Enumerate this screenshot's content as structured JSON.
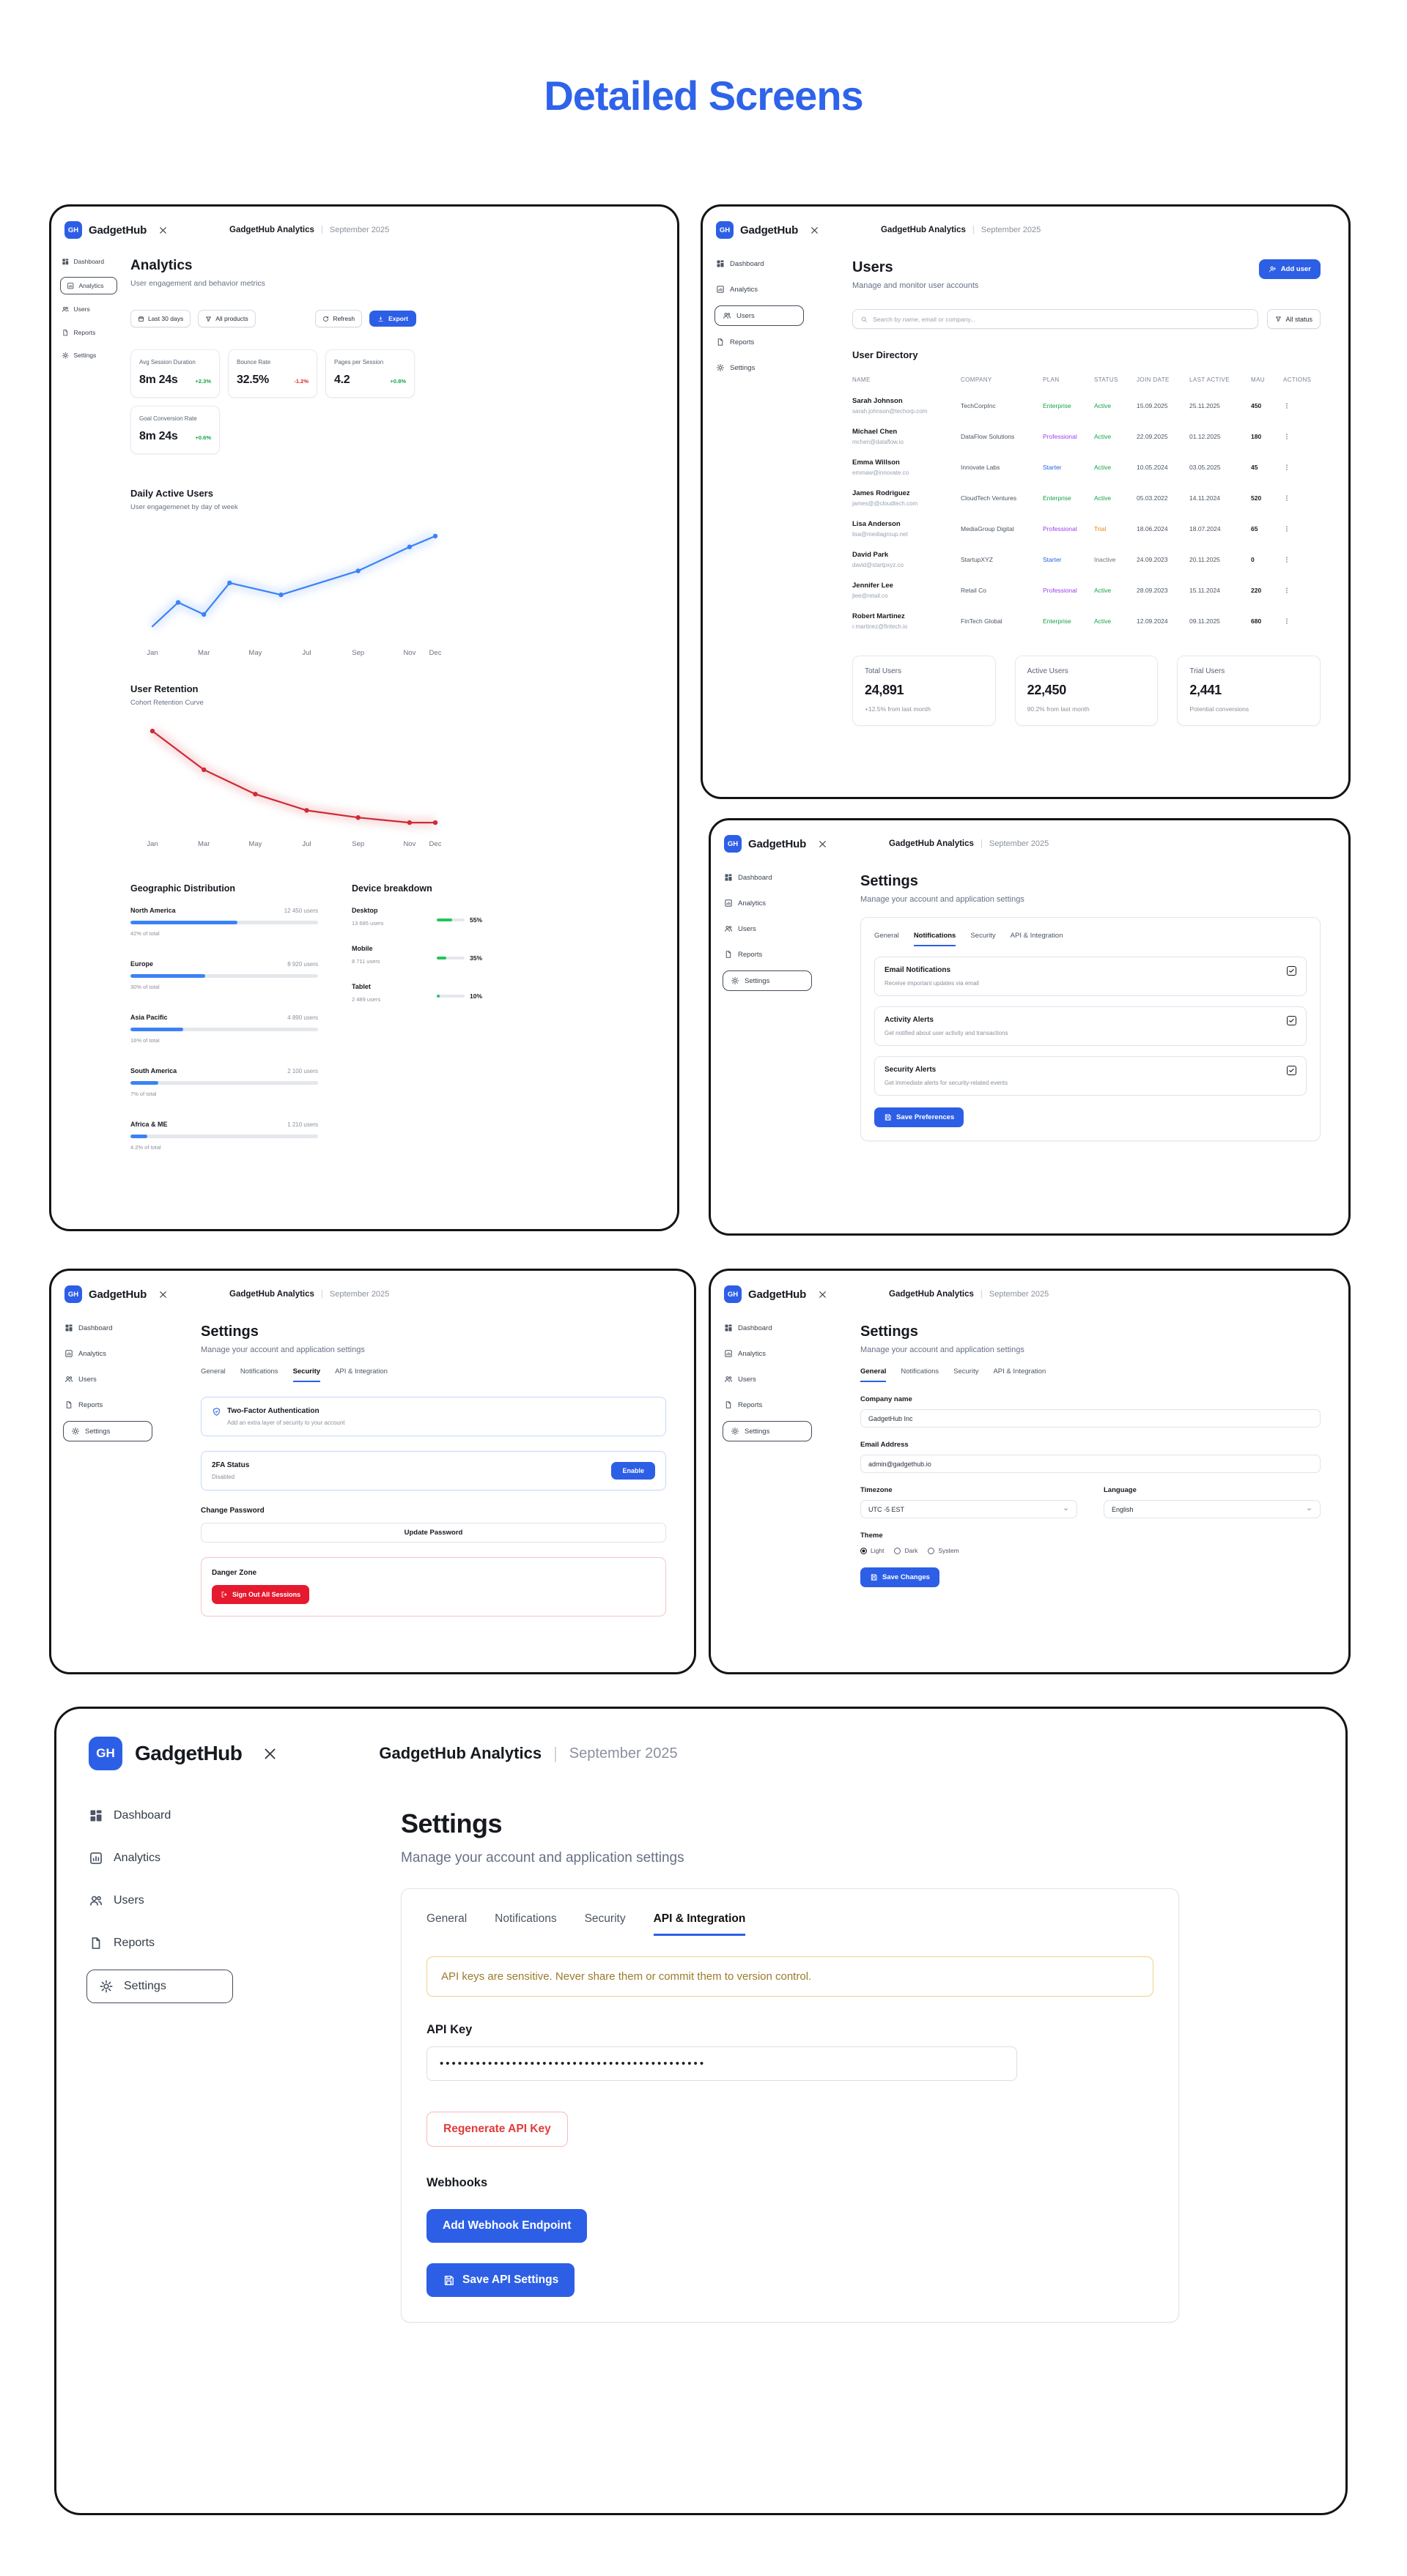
{
  "page": {
    "title": "Detailed Screens"
  },
  "colors": {
    "accent": "#2d5fe6",
    "green": "#16a34a",
    "red": "#e02424",
    "purple": "#9b3df2",
    "orange": "#e8820e",
    "chart_blue": "#3b82f6",
    "chart_red": "#cf2b34",
    "warning_text": "#9b7b2b",
    "danger": "#e6192e"
  },
  "chrome": {
    "logo": "GH",
    "app": "GadgetHub",
    "title": "GadgetHub Analytics",
    "separator": "|",
    "subtitle": "September 2025"
  },
  "sidebar": {
    "items": [
      {
        "label": "Dashboard",
        "icon": "grid"
      },
      {
        "label": "Analytics",
        "icon": "chart"
      },
      {
        "label": "Users",
        "icon": "users"
      },
      {
        "label": "Reports",
        "icon": "doc"
      },
      {
        "label": "Settings",
        "icon": "gear"
      }
    ]
  },
  "screens": {
    "analytics": {
      "title": "Analytics",
      "subtitle": "User engagement and behavior metrics",
      "filters": {
        "date_range": "Last 30 days",
        "product": "All products",
        "refresh": "Refresh",
        "export": "Export"
      },
      "metrics": [
        {
          "label": "Avg Session Duration",
          "value": "8m 24s",
          "delta": "+2.3%",
          "trend": "up"
        },
        {
          "label": "Bounce Rate",
          "value": "32.5%",
          "delta": "-1.2%",
          "trend": "down"
        },
        {
          "label": "Pages per Session",
          "value": "4.2",
          "delta": "+0.8%",
          "trend": "up"
        },
        {
          "label": "Goal Conversion Rate",
          "value": "8m 24s",
          "delta": "+0.6%",
          "trend": "up"
        }
      ],
      "geo": {
        "title": "Geographic Distribution",
        "rows": [
          {
            "region": "North America",
            "users": "12 450 users",
            "pct": "42% of total",
            "bar": 57
          },
          {
            "region": "Europe",
            "users": "8 920 users",
            "pct": "30% of total",
            "bar": 40
          },
          {
            "region": "Asia Pacific",
            "users": "4 890 users",
            "pct": "16% of total",
            "bar": 28
          },
          {
            "region": "South America",
            "users": "2 100 users",
            "pct": "7% of total",
            "bar": 15
          },
          {
            "region": "Africa & ME",
            "users": "1 210 users",
            "pct": "4.2% of total",
            "bar": 9
          }
        ]
      },
      "devices": {
        "title": "Device breakdown",
        "rows": [
          {
            "label": "Desktop",
            "users": "13 685 users",
            "pct": "55%",
            "bar": 55
          },
          {
            "label": "Mobile",
            "users": "8 711 users",
            "pct": "35%",
            "bar": 35
          },
          {
            "label": "Tablet",
            "users": "2 489 users",
            "pct": "10%",
            "bar": 10
          }
        ]
      }
    },
    "users": {
      "title": "Users",
      "subtitle": "Manage and monitor user accounts",
      "add_user": "Add user",
      "search_placeholder": "Search by name, email or company...",
      "status_filter": "All status",
      "directory_title": "User Directory",
      "columns": [
        "NAME",
        "COMPANY",
        "PLAN",
        "STATUS",
        "JOIN DATE",
        "LAST ACTIVE",
        "MAU",
        "ACTIONS"
      ],
      "rows": [
        {
          "name": "Sarah Johnson",
          "email": "sarah.johnson@techorp.com",
          "company": "TechCorpInc",
          "plan": "Enterprise",
          "plan_c": "c-green",
          "status": "Active",
          "status_c": "c-green",
          "join": "15.09.2025",
          "last": "25.11.2025",
          "mau": "450"
        },
        {
          "name": "Michael Chen",
          "email": "mchen@dataflow.io",
          "company": "DataFlow Solutions",
          "plan": "Professional",
          "plan_c": "c-purple",
          "status": "Active",
          "status_c": "c-green",
          "join": "22.09.2025",
          "last": "01.12.2025",
          "mau": "180"
        },
        {
          "name": "Emma Willson",
          "email": "emmaw@innovate.co",
          "company": "Innovate Labs",
          "plan": "Starter",
          "plan_c": "c-blue",
          "status": "Active",
          "status_c": "c-green",
          "join": "10.05.2024",
          "last": "03.05.2025",
          "mau": "45"
        },
        {
          "name": "James Rodriguez",
          "email": "james@@cloudtech.com",
          "company": "CloudTech Ventures",
          "plan": "Enterprise",
          "plan_c": "c-green",
          "status": "Active",
          "status_c": "c-green",
          "join": "05.03.2022",
          "last": "14.11.2024",
          "mau": "520"
        },
        {
          "name": "Lisa Anderson",
          "email": "lisa@mediagroup.net",
          "company": "MediaGroup Digital",
          "plan": "Professional",
          "plan_c": "c-purple",
          "status": "Trial",
          "status_c": "c-orange",
          "join": "18.06.2024",
          "last": "18.07.2024",
          "mau": "65"
        },
        {
          "name": "David Park",
          "email": "david@startpxyz.co",
          "company": "StartupXYZ",
          "plan": "Starter",
          "plan_c": "c-blue",
          "status": "Inactive",
          "status_c": "c-gray",
          "join": "24.09.2023",
          "last": "20.11.2025",
          "mau": "0"
        },
        {
          "name": "Jennifer Lee",
          "email": "jlee@retail.co",
          "company": "Retail Co",
          "plan": "Professional",
          "plan_c": "c-purple",
          "status": "Active",
          "status_c": "c-green",
          "join": "28.09.2023",
          "last": "15.11.2024",
          "mau": "220"
        },
        {
          "name": "Robert Martinez",
          "email": "r.martinez@fintech.io",
          "company": "FinTech Global",
          "plan": "Enterprise",
          "plan_c": "c-green",
          "status": "Active",
          "status_c": "c-green",
          "join": "12.09.2024",
          "last": "09.11.2025",
          "mau": "680"
        }
      ],
      "stats": [
        {
          "label": "Total Users",
          "value": "24,891",
          "note": "+12.5% from last month"
        },
        {
          "label": "Active Users",
          "value": "22,450",
          "note": "90.2% from last month"
        },
        {
          "label": "Trial Users",
          "value": "2,441",
          "note": "Potential conversions"
        }
      ]
    },
    "settings": {
      "title": "Settings",
      "subtitle": "Manage your account and application settings",
      "tabs": [
        "General",
        "Notifications",
        "Security",
        "API & Integration"
      ]
    },
    "notifications": {
      "items": [
        {
          "title": "Email Notifications",
          "desc": "Receive important updates via email",
          "checked": true
        },
        {
          "title": "Activity Alerts",
          "desc": "Get notified about user activity and transactions",
          "checked": true
        },
        {
          "title": "Security Alerts",
          "desc": "Get immediate alerts for security-related events",
          "checked": true
        }
      ],
      "save": "Save Preferences"
    },
    "security": {
      "tfa_title": "Two-Factor Authentication",
      "tfa_desc": "Add an extra layer of security to your account",
      "status_label": "2FA Status",
      "status_value": "Disabled",
      "enable": "Enable",
      "change_password": "Change Password",
      "update_password": "Update Password",
      "danger_title": "Danger Zone",
      "sign_out": "Sign Out All Sessions"
    },
    "general": {
      "company_label": "Company name",
      "company_value": "GadgetHub Inc",
      "email_label": "Email Address",
      "email_value": "admin@gadgethub.io",
      "timezone_label": "Timezone",
      "timezone_value": "UTC -5 EST",
      "language_label": "Language",
      "language_value": "English",
      "theme_label": "Theme",
      "themes": [
        {
          "label": "Light",
          "selected": true
        },
        {
          "label": "Dark",
          "selected": false
        },
        {
          "label": "System",
          "selected": false
        }
      ],
      "save": "Save Changes"
    },
    "api": {
      "warning": "API keys are sensitive. Never share them or commit them to version control.",
      "key_label": "API Key",
      "key_value": "••••••••••••••••••••••••••••••••••••••••••••",
      "regenerate": "Regenerate API Key",
      "webhooks_label": "Webhooks",
      "add_webhook": "Add Webhook Endpoint",
      "save": "Save API Settings"
    }
  },
  "chart_data": [
    {
      "type": "line",
      "title": "Daily Active Users",
      "subtitle": "User engagemenet by day of week",
      "color": "#3b82f6",
      "ylim": [
        0,
        105
      ],
      "grid": false,
      "legend": "none",
      "x_ticks": [
        {
          "m": 0,
          "label": "Jan"
        },
        {
          "m": 2,
          "label": "Mar"
        },
        {
          "m": 4,
          "label": "May"
        },
        {
          "m": 6,
          "label": "Jul"
        },
        {
          "m": 8,
          "label": "Sep"
        },
        {
          "m": 10,
          "label": "Nov"
        },
        {
          "m": 11,
          "label": "Dec"
        }
      ],
      "points": [
        {
          "m": 0,
          "v": 14,
          "marker": false
        },
        {
          "m": 1,
          "v": 36
        },
        {
          "m": 2,
          "v": 25
        },
        {
          "m": 3,
          "v": 54
        },
        {
          "m": 5,
          "v": 43
        },
        {
          "m": 8,
          "v": 65
        },
        {
          "m": 10,
          "v": 87
        },
        {
          "m": 11,
          "v": 97
        }
      ]
    },
    {
      "type": "line",
      "title": "User Retention",
      "subtitle": "Cohort Retention Curve",
      "color": "#cf2b34",
      "ylim": [
        0,
        108
      ],
      "grid": false,
      "legend": "none",
      "x_ticks": [
        {
          "m": 0,
          "label": "Jan"
        },
        {
          "m": 2,
          "label": "Mar"
        },
        {
          "m": 4,
          "label": "May"
        },
        {
          "m": 6,
          "label": "Jul"
        },
        {
          "m": 8,
          "label": "Sep"
        },
        {
          "m": 10,
          "label": "Nov"
        },
        {
          "m": 11,
          "label": "Dec"
        }
      ],
      "points": [
        {
          "m": 0,
          "v": 100
        },
        {
          "m": 2,
          "v": 62
        },
        {
          "m": 4,
          "v": 38
        },
        {
          "m": 6,
          "v": 22
        },
        {
          "m": 8,
          "v": 15
        },
        {
          "m": 10,
          "v": 10
        },
        {
          "m": 11,
          "v": 10
        }
      ]
    }
  ]
}
